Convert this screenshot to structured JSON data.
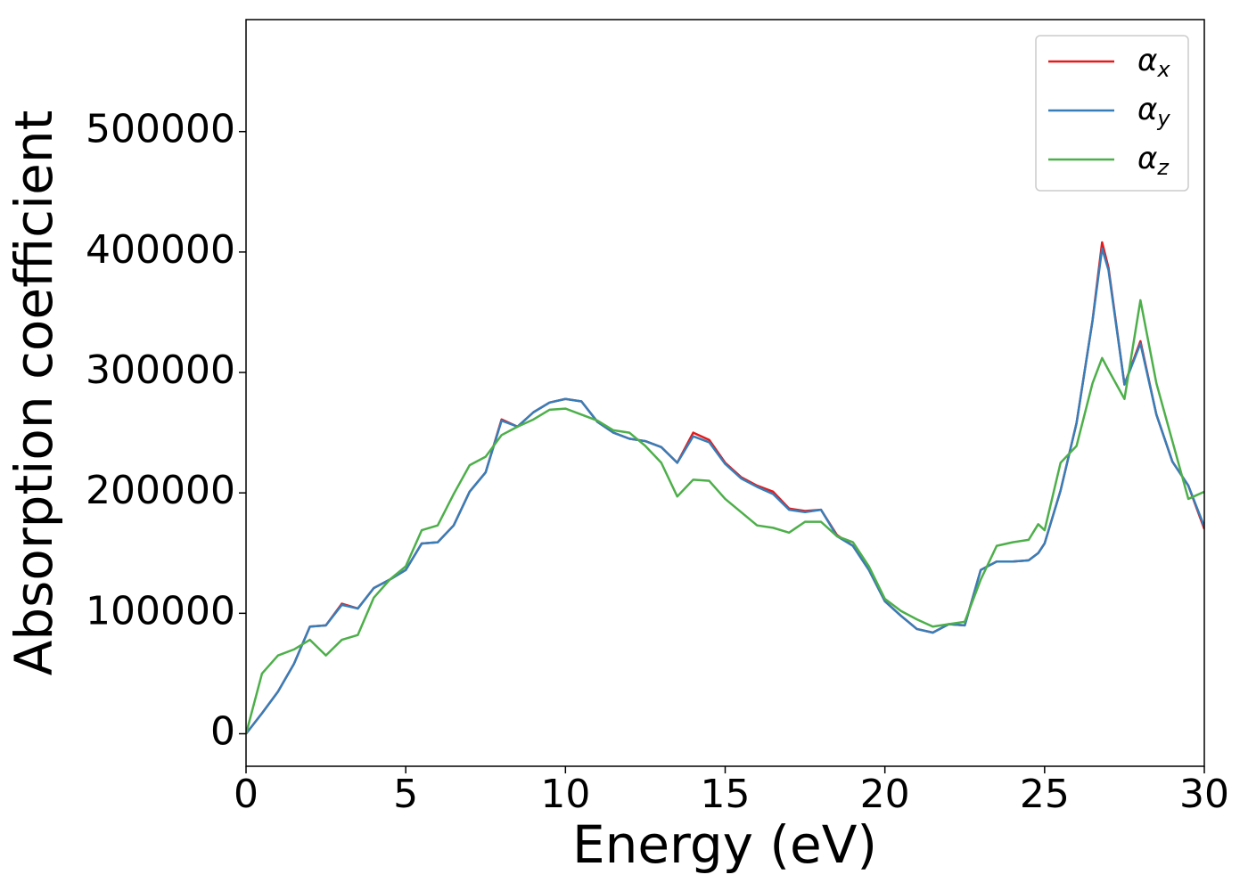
{
  "chart_data": {
    "type": "line",
    "xlabel": "Energy (eV)",
    "ylabel": "Absorption coefficient",
    "x": [
      0,
      0.5,
      1,
      1.5,
      2,
      2.5,
      3,
      3.5,
      4,
      4.5,
      5,
      5.5,
      6,
      6.5,
      7,
      7.5,
      8,
      8.5,
      9,
      9.5,
      10,
      10.5,
      11,
      11.5,
      12,
      12.5,
      13,
      13.5,
      14,
      14.5,
      15,
      15.5,
      16,
      16.5,
      17,
      17.5,
      18,
      18.5,
      19,
      19.5,
      20,
      20.5,
      21,
      21.5,
      22,
      22.5,
      23,
      23.5,
      24,
      24.5,
      24.8,
      25,
      25.5,
      26,
      26.5,
      26.8,
      27,
      27.5,
      28,
      28.5,
      29,
      29.5,
      30
    ],
    "series": [
      {
        "name": "αx",
        "color": "#e41a1c",
        "values": [
          0,
          17000,
          35000,
          58000,
          89000,
          90000,
          108000,
          104000,
          121000,
          128000,
          136000,
          158000,
          159000,
          173000,
          201000,
          217000,
          261000,
          255000,
          267000,
          275000,
          278000,
          276000,
          259000,
          250000,
          245000,
          243000,
          238000,
          225000,
          250000,
          244000,
          225000,
          213000,
          206000,
          201000,
          187000,
          185000,
          186000,
          165000,
          156000,
          136000,
          110000,
          98000,
          87000,
          84000,
          91000,
          90000,
          136000,
          143000,
          143000,
          144000,
          150000,
          158000,
          202000,
          258000,
          343000,
          408000,
          387000,
          290000,
          326000,
          265000,
          226000,
          206000,
          170000
        ]
      },
      {
        "name": "αy",
        "color": "#377eb8",
        "values": [
          0,
          17000,
          35000,
          58000,
          89000,
          90000,
          107000,
          104000,
          121000,
          128000,
          136000,
          158000,
          159000,
          173000,
          201000,
          217000,
          260000,
          255000,
          267000,
          275000,
          278000,
          276000,
          259000,
          250000,
          245000,
          243000,
          238000,
          225000,
          247000,
          242000,
          224000,
          212000,
          205000,
          199000,
          186000,
          184000,
          186000,
          164000,
          156000,
          136000,
          110000,
          98000,
          87000,
          84000,
          91000,
          90000,
          136000,
          143000,
          143000,
          144000,
          150000,
          158000,
          202000,
          258000,
          343000,
          403000,
          385000,
          290000,
          324000,
          265000,
          226000,
          206000,
          172000
        ]
      },
      {
        "name": "αz",
        "color": "#4daf4a",
        "values": [
          0,
          50000,
          65000,
          70000,
          78000,
          65000,
          78000,
          82000,
          113000,
          128000,
          139000,
          169000,
          173000,
          199000,
          223000,
          230000,
          248000,
          255000,
          261000,
          269000,
          270000,
          265000,
          260000,
          252000,
          250000,
          239000,
          225000,
          197000,
          211000,
          210000,
          195000,
          184000,
          173000,
          171000,
          167000,
          176000,
          176000,
          164000,
          159000,
          139000,
          112000,
          102000,
          95000,
          89000,
          91000,
          93000,
          128000,
          156000,
          159000,
          161000,
          174000,
          169000,
          225000,
          239000,
          291000,
          312000,
          302000,
          278000,
          360000,
          291000,
          243000,
          195000,
          201000
        ]
      }
    ],
    "xlim": [
      0,
      30
    ],
    "ylim": [
      -27000,
      593000
    ],
    "xticks": [
      0,
      5,
      10,
      15,
      20,
      25,
      30
    ],
    "yticks": [
      0,
      100000,
      200000,
      300000,
      400000,
      500000
    ],
    "legend": "upper right",
    "grid": false
  }
}
